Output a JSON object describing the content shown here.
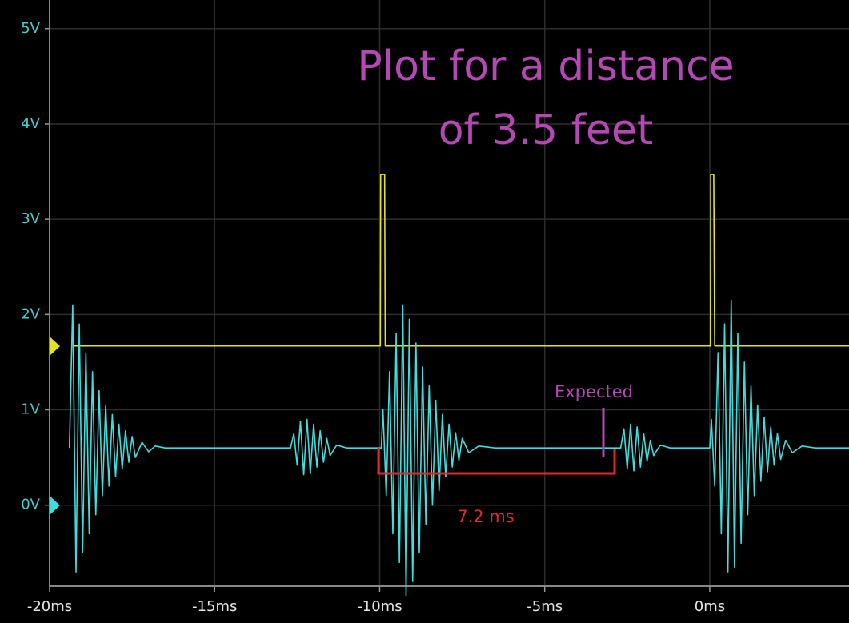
{
  "chart_data": {
    "type": "line",
    "title": [
      "Plot for a distance",
      "of 3.5 feet"
    ],
    "title_color": "#b548b5",
    "xlim": [
      -20,
      4.22
    ],
    "ylim": [
      -0.85,
      5.3
    ],
    "xticks": [
      {
        "value": -20,
        "label": "-20ms"
      },
      {
        "value": -15,
        "label": "-15ms"
      },
      {
        "value": -10,
        "label": "-10ms"
      },
      {
        "value": -5,
        "label": "-5ms"
      },
      {
        "value": 0,
        "label": "0ms"
      }
    ],
    "yticks": [
      {
        "value": 0,
        "label": "0V"
      },
      {
        "value": 1,
        "label": "1V"
      },
      {
        "value": 2,
        "label": "2V"
      },
      {
        "value": 3,
        "label": "3V"
      },
      {
        "value": 4,
        "label": "4V"
      },
      {
        "value": 5,
        "label": "5V"
      }
    ],
    "grid": true,
    "series": [
      {
        "color": "#e3e322",
        "x": [
          -19.3,
          -9.98,
          -9.97,
          -9.85,
          -9.83,
          0.02,
          0.03,
          0.12,
          0.15,
          4.22
        ],
        "values": [
          1.67,
          1.67,
          3.47,
          3.47,
          1.67,
          1.67,
          3.47,
          3.47,
          1.67,
          1.67
        ]
      },
      {
        "color": "#3fdede",
        "x": [
          -19.4,
          -19.3,
          -19.2,
          -19.1,
          -19.0,
          -18.9,
          -18.8,
          -18.7,
          -18.6,
          -18.5,
          -18.4,
          -18.3,
          -18.2,
          -18.1,
          -18.0,
          -17.9,
          -17.8,
          -17.7,
          -17.6,
          -17.5,
          -17.4,
          -17.2,
          -17.0,
          -16.8,
          -16.5,
          -14.0,
          -12.7,
          -12.6,
          -12.5,
          -12.4,
          -12.3,
          -12.2,
          -12.1,
          -12.0,
          -11.9,
          -11.8,
          -11.7,
          -11.6,
          -11.5,
          -11.3,
          -11.0,
          -9.95,
          -9.9,
          -9.8,
          -9.7,
          -9.6,
          -9.5,
          -9.4,
          -9.3,
          -9.2,
          -9.1,
          -9.0,
          -8.9,
          -8.8,
          -8.7,
          -8.6,
          -8.5,
          -8.4,
          -8.3,
          -8.2,
          -8.1,
          -8.0,
          -7.9,
          -7.8,
          -7.7,
          -7.6,
          -7.5,
          -7.3,
          -7.0,
          -6.5,
          -3.0,
          -2.7,
          -2.6,
          -2.5,
          -2.4,
          -2.3,
          -2.2,
          -2.1,
          -2.0,
          -1.9,
          -1.8,
          -1.7,
          -1.5,
          -1.2,
          -0.1,
          0.0,
          0.05,
          0.15,
          0.25,
          0.35,
          0.45,
          0.55,
          0.65,
          0.75,
          0.85,
          0.95,
          1.05,
          1.15,
          1.25,
          1.35,
          1.45,
          1.55,
          1.65,
          1.75,
          1.85,
          1.95,
          2.05,
          2.15,
          2.3,
          2.5,
          2.8,
          3.2,
          4.22
        ],
        "values": [
          0.6,
          2.1,
          -0.7,
          1.9,
          -0.5,
          1.6,
          -0.3,
          1.4,
          -0.1,
          1.2,
          0.1,
          1.05,
          0.2,
          0.95,
          0.3,
          0.85,
          0.38,
          0.78,
          0.45,
          0.72,
          0.5,
          0.66,
          0.56,
          0.62,
          0.6,
          0.6,
          0.6,
          0.75,
          0.42,
          0.88,
          0.32,
          0.9,
          0.33,
          0.85,
          0.4,
          0.78,
          0.45,
          0.7,
          0.52,
          0.63,
          0.6,
          0.6,
          1.0,
          0.1,
          1.4,
          -0.3,
          1.8,
          -0.6,
          2.1,
          -0.95,
          1.95,
          -0.8,
          1.7,
          -0.5,
          1.45,
          -0.2,
          1.25,
          0.0,
          1.1,
          0.15,
          0.95,
          0.3,
          0.85,
          0.4,
          0.76,
          0.47,
          0.7,
          0.55,
          0.62,
          0.6,
          0.6,
          0.6,
          0.8,
          0.38,
          0.85,
          0.36,
          0.82,
          0.4,
          0.75,
          0.46,
          0.68,
          0.52,
          0.63,
          0.6,
          0.6,
          0.6,
          0.9,
          0.2,
          1.6,
          -0.3,
          1.9,
          -0.7,
          2.15,
          -0.65,
          1.8,
          -0.4,
          1.5,
          -0.1,
          1.25,
          0.1,
          1.05,
          0.25,
          0.92,
          0.35,
          0.82,
          0.42,
          0.75,
          0.48,
          0.68,
          0.55,
          0.62,
          0.6,
          0.6
        ]
      }
    ],
    "annotations": [
      {
        "text": "Expected",
        "color": "#b548b5"
      },
      {
        "text": "7.2 ms",
        "color": "#e02a2a"
      }
    ]
  }
}
